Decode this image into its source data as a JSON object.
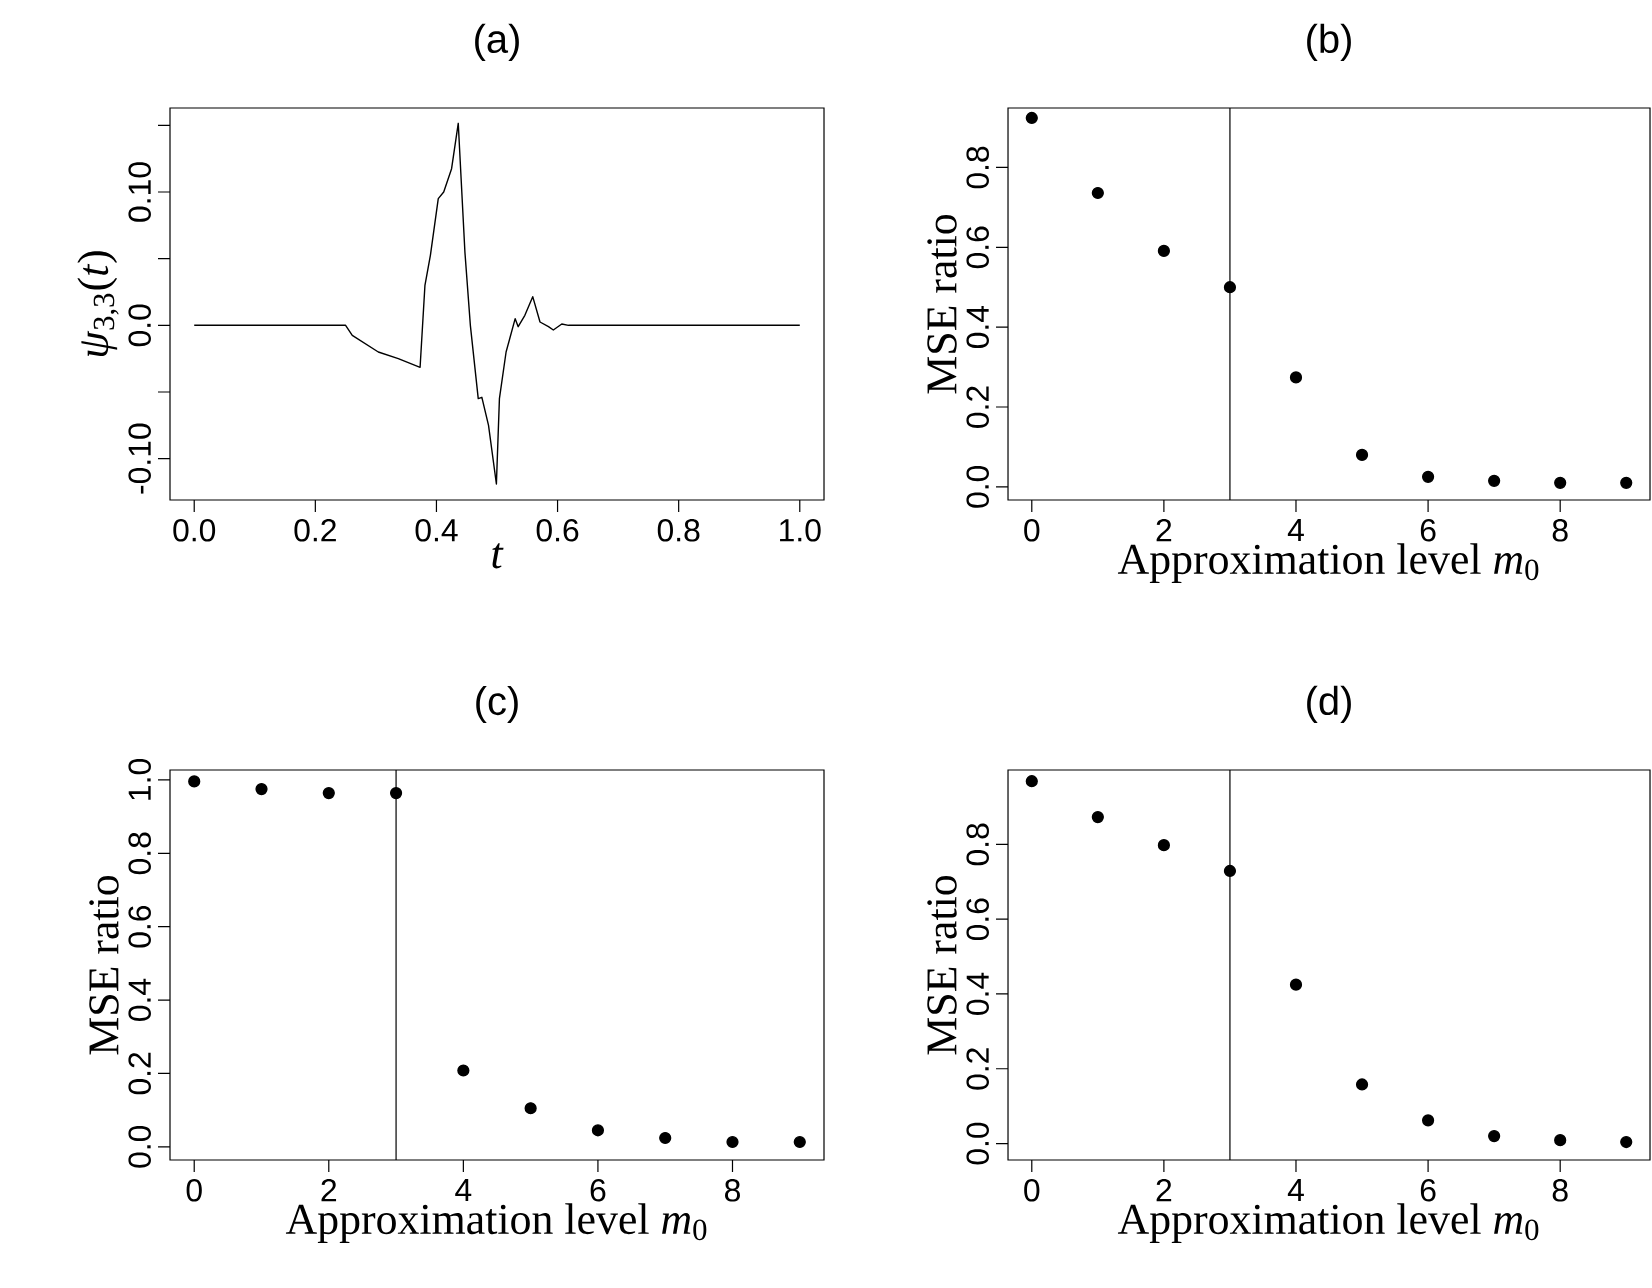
{
  "chart_data": [
    {
      "type": "line",
      "title": "(a)",
      "xlabel": "*t*",
      "ylabel": "*ψ*$_{3,3}$(*t*)",
      "series": [
        {
          "color": "#000000",
          "x": [
            0,
            0.25,
            0.261,
            0.304,
            0.337,
            0.373,
            0.381,
            0.39,
            0.403,
            0.412,
            0.425,
            0.436,
            0.447,
            0.456,
            0.469,
            0.475,
            0.486,
            0.499,
            0.504,
            0.515,
            0.53,
            0.535,
            0.546,
            0.559,
            0.571,
            0.585,
            0.593,
            0.607,
            0.618,
            1
          ],
          "values": [
            0,
            0,
            -0.0075,
            -0.02,
            -0.025,
            -0.0315,
            0.03,
            0.0525,
            0.095,
            0.1,
            0.1175,
            0.1515,
            0.055,
            0,
            -0.055,
            -0.054,
            -0.075,
            -0.119,
            -0.055,
            -0.02,
            0.005,
            -0.001,
            0.0075,
            0.0215,
            0.0025,
            -0.001,
            -0.0035,
            0.001,
            0,
            0
          ]
        }
      ],
      "xlim": [
        -0.04,
        1.04
      ],
      "ylim": [
        -0.131,
        0.163
      ],
      "xticks": [
        {
          "value": 0,
          "label": "0.0"
        },
        {
          "value": 0.2,
          "label": "0.2"
        },
        {
          "value": 0.4,
          "label": "0.4"
        },
        {
          "value": 0.6,
          "label": "0.6"
        },
        {
          "value": 0.8,
          "label": "0.8"
        },
        {
          "value": 1,
          "label": "1.0"
        }
      ],
      "yticks": [
        {
          "value": -0.1,
          "label": "-0.10"
        },
        {
          "value": -0.05,
          "label": null
        },
        {
          "value": 0,
          "label": "0.0"
        },
        {
          "value": 0.05,
          "label": null
        },
        {
          "value": 0.1,
          "label": "0.10"
        },
        {
          "value": 0.15,
          "label": null
        }
      ]
    },
    {
      "type": "scatter",
      "title": "(b)",
      "xlabel": "Approximation level *m*$_{0}$",
      "ylabel": "MSE ratio",
      "marker": "circle",
      "series": [
        {
          "color": "#000000",
          "x": [
            0,
            1,
            2,
            3,
            4,
            5,
            6,
            7,
            8,
            9
          ],
          "values": [
            0.924,
            0.736,
            0.591,
            0.5,
            0.274,
            0.08,
            0.025,
            0.015,
            0.01,
            0.01
          ]
        }
      ],
      "xlim": [
        -0.36,
        9.36
      ],
      "ylim": [
        -0.033,
        0.949
      ],
      "xticks": [
        0,
        2,
        4,
        6,
        8
      ],
      "yticks": [
        {
          "value": 0,
          "label": "0.0"
        },
        {
          "value": 0.2,
          "label": "0.2"
        },
        {
          "value": 0.4,
          "label": "0.4"
        },
        {
          "value": 0.6,
          "label": "0.6"
        },
        {
          "value": 0.8,
          "label": "0.8"
        }
      ],
      "ref_lines": [
        {
          "axis": "x",
          "value": 3
        }
      ]
    },
    {
      "type": "scatter",
      "title": "(c)",
      "xlabel": "Approximation level *m*$_{0}$",
      "ylabel": "MSE ratio",
      "marker": "circle",
      "series": [
        {
          "color": "#000000",
          "x": [
            0,
            1,
            2,
            3,
            4,
            5,
            6,
            7,
            8,
            9
          ],
          "values": [
            0.996,
            0.975,
            0.964,
            0.964,
            0.208,
            0.105,
            0.045,
            0.024,
            0.013,
            0.013
          ]
        }
      ],
      "xlim": [
        -0.36,
        9.36
      ],
      "ylim": [
        -0.036,
        1.027
      ],
      "xticks": [
        0,
        2,
        4,
        6,
        8
      ],
      "yticks": [
        {
          "value": 0,
          "label": "0.0"
        },
        {
          "value": 0.2,
          "label": "0.2"
        },
        {
          "value": 0.4,
          "label": "0.4"
        },
        {
          "value": 0.6,
          "label": "0.6"
        },
        {
          "value": 0.8,
          "label": "0.8"
        },
        {
          "value": 1,
          "label": "1.0"
        }
      ],
      "ref_lines": [
        {
          "axis": "x",
          "value": 3
        }
      ]
    },
    {
      "type": "scatter",
      "title": "(d)",
      "xlabel": "Approximation level *m*$_{0}$",
      "ylabel": "MSE ratio",
      "marker": "circle",
      "series": [
        {
          "color": "#000000",
          "x": [
            0,
            1,
            2,
            3,
            4,
            5,
            6,
            7,
            8,
            9
          ],
          "values": [
            0.969,
            0.873,
            0.798,
            0.729,
            0.425,
            0.158,
            0.062,
            0.02,
            0.009,
            0.004
          ]
        }
      ],
      "xlim": [
        -0.36,
        9.36
      ],
      "ylim": [
        -0.044,
        0.999
      ],
      "xticks": [
        0,
        2,
        4,
        6,
        8
      ],
      "yticks": [
        {
          "value": 0,
          "label": "0.0"
        },
        {
          "value": 0.2,
          "label": "0.2"
        },
        {
          "value": 0.4,
          "label": "0.4"
        },
        {
          "value": 0.6,
          "label": "0.6"
        },
        {
          "value": 0.8,
          "label": "0.8"
        }
      ],
      "ref_lines": [
        {
          "axis": "x",
          "value": 3
        }
      ]
    }
  ]
}
